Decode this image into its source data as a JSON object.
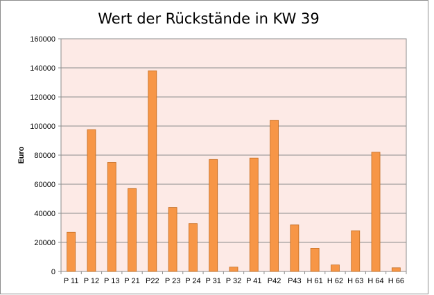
{
  "colors": {
    "plot_background": "#fdeae6",
    "bar_fill": "#f79646",
    "bar_stroke": "#c06a1e",
    "gridline": "#8c8c8c",
    "chart_border": "#8c8c8c"
  },
  "chart_data": {
    "type": "bar",
    "title": "Wert der Rückstände in KW 39",
    "xlabel": "",
    "ylabel": "Euro",
    "ylim": [
      0,
      160000
    ],
    "yticks": [
      "0",
      "20000",
      "40000",
      "60000",
      "80000",
      "100000",
      "120000",
      "140000",
      "160000"
    ],
    "grid": true,
    "legend": "none",
    "categories": [
      "P 11",
      "P 12",
      "P 13",
      "P 21",
      "P22",
      "P 23",
      "P 24",
      "P 31",
      "P 32",
      "P 41",
      "P42",
      "P43",
      "H 61",
      "H 62",
      "H 63",
      "H 64",
      "H 66"
    ],
    "values": [
      27000,
      97500,
      75000,
      57000,
      138000,
      44000,
      33000,
      77000,
      3000,
      78000,
      104000,
      32000,
      16000,
      4500,
      28000,
      82000,
      2500
    ]
  }
}
